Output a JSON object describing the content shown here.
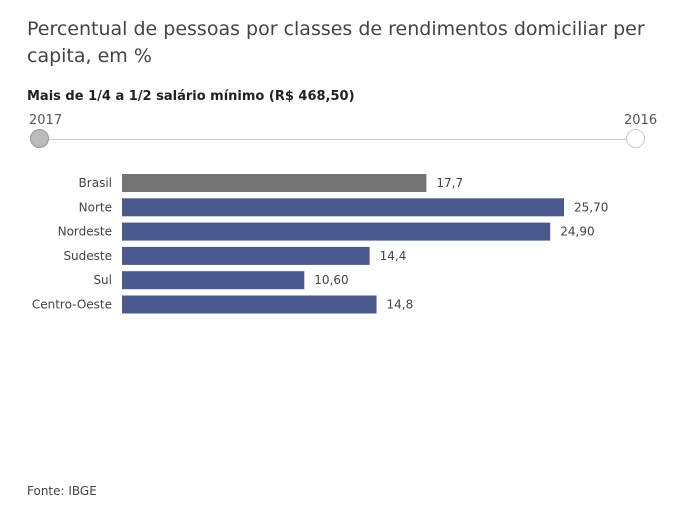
{
  "title": "Percentual de pessoas por classes de rendimentos domiciliar per capita, em %",
  "subtitle": "Mais de 1/4 a 1/2 salário mínimo (R$ 468,50)",
  "slider": {
    "left_label": "2017",
    "right_label": "2016",
    "selected": "2017"
  },
  "source": "Fonte: IBGE",
  "colors": {
    "highlight": "#737373",
    "bar": "#4a5a8c"
  },
  "chart_data": {
    "type": "bar",
    "orientation": "horizontal",
    "title": "Percentual de pessoas por classes de rendimentos domiciliar per capita, em %",
    "subtitle": "Mais de 1/4 a 1/2 salário mínimo (R$ 468,50)",
    "categories": [
      "Brasil",
      "Norte",
      "Nordeste",
      "Sudeste",
      "Sul",
      "Centro-Oeste"
    ],
    "values": [
      17.7,
      25.7,
      24.9,
      14.4,
      10.6,
      14.8
    ],
    "value_labels": [
      "17,7",
      "25,70",
      "24,90",
      "14,4",
      "10,60",
      "14,8"
    ],
    "highlight": [
      "Brasil"
    ],
    "xlim": [
      0,
      25.7
    ],
    "grid": false,
    "legend": "none"
  }
}
